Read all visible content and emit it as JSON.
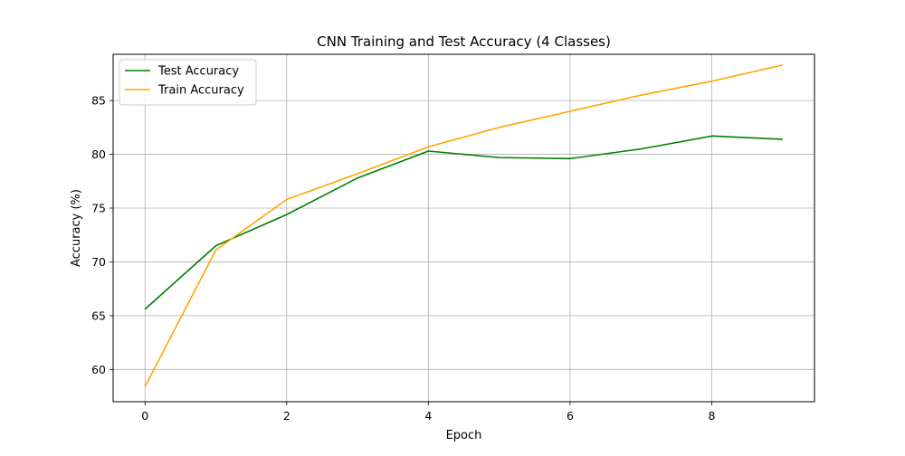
{
  "chart_data": {
    "type": "line",
    "title": "CNN Training and Test Accuracy (4 Classes)",
    "xlabel": "Epoch",
    "ylabel": "Accuracy (%)",
    "x": [
      0,
      1,
      2,
      3,
      4,
      5,
      6,
      7,
      8,
      9
    ],
    "xlim": [
      -0.45,
      9.45
    ],
    "ylim": [
      57.0,
      89.3
    ],
    "xticks": [
      0,
      2,
      4,
      6,
      8
    ],
    "yticks": [
      60,
      65,
      70,
      75,
      80,
      85
    ],
    "grid": true,
    "legend_position": "upper-left",
    "series": [
      {
        "name": "Test Accuracy",
        "color": "#008000",
        "values": [
          65.6,
          71.5,
          74.4,
          77.8,
          80.3,
          79.7,
          79.6,
          80.5,
          81.7,
          81.4
        ]
      },
      {
        "name": "Train Accuracy",
        "color": "#ffa500",
        "values": [
          58.4,
          71.1,
          75.8,
          78.2,
          80.7,
          82.5,
          84.0,
          85.5,
          86.8,
          88.3
        ]
      }
    ]
  }
}
